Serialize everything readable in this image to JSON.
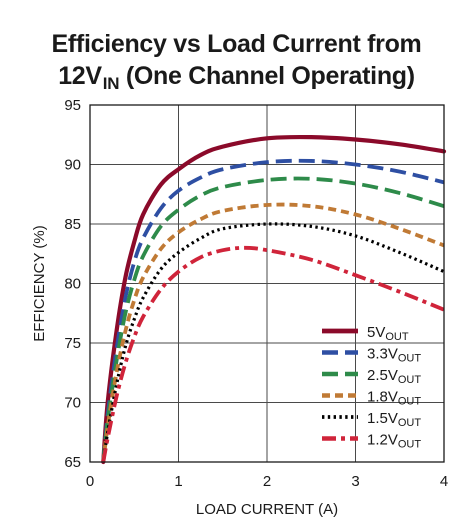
{
  "title": {
    "line1": "Efficiency vs Load Current from",
    "line2_main": "12V",
    "line2_sub": "IN",
    "line2_rest": " (One Channel Operating)"
  },
  "chart_data": {
    "type": "line",
    "xlabel": "LOAD CURRENT (A)",
    "ylabel": "EFFICIENCY (%)",
    "xlim": [
      0,
      4
    ],
    "ylim": [
      65,
      95
    ],
    "xticks": [
      "0",
      "1",
      "2",
      "3",
      "4"
    ],
    "yticks": [
      "65",
      "70",
      "75",
      "80",
      "85",
      "90",
      "95"
    ],
    "grid": true,
    "legend_position": "bottom-right",
    "series": [
      {
        "name": "5V",
        "name_sub": "OUT",
        "color": "#8b0a2a",
        "style": "solid",
        "x": [
          0.15,
          0.2,
          0.3,
          0.4,
          0.5,
          0.6,
          0.8,
          1.0,
          1.25,
          1.5,
          2.0,
          2.5,
          3.0,
          3.5,
          4.0
        ],
        "y": [
          65.0,
          70.0,
          76.0,
          80.5,
          83.5,
          85.8,
          88.3,
          89.6,
          90.8,
          91.5,
          92.2,
          92.3,
          92.1,
          91.7,
          91.1
        ]
      },
      {
        "name": "3.3V",
        "name_sub": "OUT",
        "color": "#2e4fa3",
        "style": "dash",
        "x": [
          0.15,
          0.2,
          0.3,
          0.4,
          0.5,
          0.6,
          0.8,
          1.0,
          1.25,
          1.5,
          2.0,
          2.5,
          3.0,
          3.5,
          4.0
        ],
        "y": [
          65.0,
          69.0,
          74.5,
          78.8,
          81.8,
          83.8,
          86.3,
          87.8,
          88.9,
          89.6,
          90.2,
          90.3,
          90.0,
          89.4,
          88.5
        ]
      },
      {
        "name": "2.5V",
        "name_sub": "OUT",
        "color": "#2e8b4a",
        "style": "dash",
        "x": [
          0.15,
          0.2,
          0.3,
          0.4,
          0.5,
          0.6,
          0.8,
          1.0,
          1.25,
          1.5,
          2.0,
          2.5,
          3.0,
          3.5,
          4.0
        ],
        "y": [
          65.0,
          68.5,
          73.5,
          77.5,
          80.3,
          82.3,
          84.8,
          86.2,
          87.4,
          88.1,
          88.7,
          88.8,
          88.4,
          87.6,
          86.5
        ]
      },
      {
        "name": "1.8V",
        "name_sub": "OUT",
        "color": "#c07a35",
        "style": "short-dash",
        "x": [
          0.15,
          0.2,
          0.3,
          0.4,
          0.5,
          0.6,
          0.8,
          1.0,
          1.25,
          1.5,
          2.0,
          2.5,
          3.0,
          3.5,
          4.0
        ],
        "y": [
          65.0,
          68.0,
          72.5,
          76.0,
          78.6,
          80.5,
          82.9,
          84.3,
          85.4,
          86.1,
          86.6,
          86.5,
          85.8,
          84.6,
          83.2
        ]
      },
      {
        "name": "1.5V",
        "name_sub": "OUT",
        "color": "#000000",
        "style": "dotted",
        "x": [
          0.15,
          0.2,
          0.3,
          0.4,
          0.5,
          0.6,
          0.8,
          1.0,
          1.25,
          1.5,
          2.0,
          2.5,
          3.0,
          3.5,
          4.0
        ],
        "y": [
          65.0,
          67.5,
          71.5,
          74.7,
          77.0,
          78.8,
          81.2,
          82.6,
          83.8,
          84.6,
          85.0,
          84.8,
          84.0,
          82.6,
          81.0
        ]
      },
      {
        "name": "1.2V",
        "name_sub": "OUT",
        "color": "#d0243a",
        "style": "dash-dot",
        "x": [
          0.15,
          0.2,
          0.3,
          0.4,
          0.5,
          0.6,
          0.8,
          1.0,
          1.25,
          1.5,
          1.75,
          2.0,
          2.5,
          3.0,
          3.5,
          4.0
        ],
        "y": [
          65.0,
          67.0,
          70.5,
          73.3,
          75.5,
          77.2,
          79.5,
          81.0,
          82.2,
          82.8,
          83.0,
          82.8,
          82.0,
          80.7,
          79.3,
          77.8
        ]
      }
    ]
  }
}
